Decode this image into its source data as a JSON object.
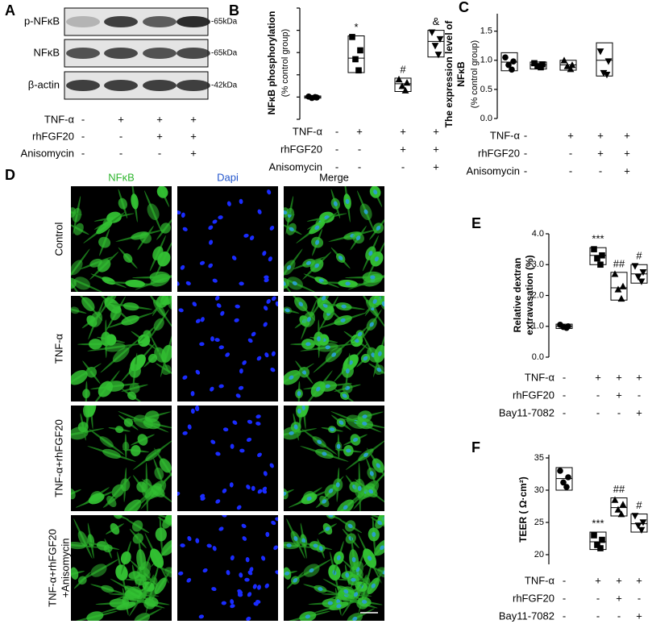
{
  "blot": {
    "label": "A",
    "rows": [
      {
        "name": "p-NFκB",
        "size": "-65kDa"
      },
      {
        "name": "NFκB",
        "size": "-65kDa"
      },
      {
        "name": "β-actin",
        "size": "-42kDa"
      }
    ],
    "conditions": [
      {
        "name": "TNF-α",
        "signs": [
          "-",
          "+",
          "+",
          "+"
        ]
      },
      {
        "name": "rhFGF20",
        "signs": [
          "-",
          "-",
          "+",
          "+"
        ]
      },
      {
        "name": "Anisomycin",
        "signs": [
          "-",
          "-",
          "-",
          "+"
        ]
      }
    ]
  },
  "chart_data": [
    {
      "type": "box",
      "label": "B",
      "ylabel": [
        "NFκB phosphorylation",
        "(% control group)"
      ],
      "ylim": [
        0,
        5
      ],
      "yticks": [
        0,
        1,
        2,
        3,
        4,
        5
      ],
      "tick_labels": false,
      "groups": [
        {
          "marker": "circle",
          "values": [
            1.02,
            0.98,
            0.96,
            1.0
          ],
          "box": [
            0.95,
            1.0,
            1.05
          ]
        },
        {
          "marker": "square",
          "values": [
            3.7,
            3.1,
            2.7,
            2.2
          ],
          "box": [
            2.1,
            2.75,
            3.75
          ],
          "annotation": "*"
        },
        {
          "marker": "triangle-up",
          "values": [
            1.8,
            1.65,
            1.5,
            1.3
          ],
          "box": [
            1.25,
            1.6,
            1.85
          ],
          "annotation": "#"
        },
        {
          "marker": "triangle-down",
          "values": [
            3.9,
            3.6,
            3.3,
            2.9
          ],
          "box": [
            2.8,
            3.5,
            4.0
          ],
          "annotation": "&"
        }
      ],
      "conditions": [
        {
          "name": "TNF-α",
          "signs": [
            "-",
            "+",
            "+",
            "+"
          ]
        },
        {
          "name": "rhFGF20",
          "signs": [
            "-",
            "-",
            "+",
            "+"
          ]
        },
        {
          "name": "Anisomycin",
          "signs": [
            "-",
            "-",
            "-",
            "+"
          ]
        }
      ]
    },
    {
      "type": "box",
      "label": "C",
      "ylabel": [
        "The expression level of",
        "NFκB",
        "(% control group)"
      ],
      "ylim": [
        0,
        1.8
      ],
      "yticks": [
        {
          "value": 0,
          "label": "0.0"
        },
        {
          "value": 0.5,
          "label": "0.5"
        },
        {
          "value": 1,
          "label": "1.0"
        },
        {
          "value": 1.5,
          "label": "1.5"
        }
      ],
      "groups": [
        {
          "marker": "circle",
          "values": [
            1.05,
            0.98,
            0.92,
            0.84
          ],
          "box": [
            0.82,
            0.97,
            1.13
          ]
        },
        {
          "marker": "square",
          "values": [
            0.95,
            0.93,
            0.9,
            0.88
          ],
          "box": [
            0.85,
            0.92,
            0.97
          ]
        },
        {
          "marker": "triangle-up",
          "values": [
            1.0,
            0.92,
            0.9,
            0.85
          ],
          "box": [
            0.83,
            0.92,
            1.0
          ]
        },
        {
          "marker": "triangle-down",
          "values": [
            1.15,
            0.98,
            0.78,
            0.75
          ],
          "box": [
            0.73,
            1.0,
            1.3
          ]
        }
      ],
      "conditions": [
        {
          "name": "TNF-α",
          "signs": [
            "-",
            "+",
            "+",
            "+"
          ]
        },
        {
          "name": "rhFGF20",
          "signs": [
            "-",
            "-",
            "+",
            "+"
          ]
        },
        {
          "name": "Anisomycin",
          "signs": [
            "-",
            "-",
            "-",
            "+"
          ]
        }
      ]
    },
    {
      "type": "box",
      "label": "E",
      "ylabel": [
        "Relative dextran",
        "extravasation (%)"
      ],
      "ylim": [
        0,
        4
      ],
      "yticks": [
        {
          "value": 0,
          "label": "0.0"
        },
        {
          "value": 1,
          "label": "1.0"
        },
        {
          "value": 2,
          "label": "2.0"
        },
        {
          "value": 3,
          "label": "3.0"
        },
        {
          "value": 4,
          "label": "4.0"
        }
      ],
      "groups": [
        {
          "marker": "circle",
          "values": [
            1.05,
            1.0,
            0.98,
            0.95
          ],
          "box": [
            0.93,
            1.0,
            1.07
          ]
        },
        {
          "marker": "square",
          "values": [
            3.5,
            3.3,
            3.2,
            3.0
          ],
          "box": [
            3.0,
            3.3,
            3.55
          ],
          "annotation": "***"
        },
        {
          "marker": "triangle-up",
          "values": [
            2.7,
            2.3,
            2.2,
            1.9
          ],
          "box": [
            1.85,
            2.25,
            2.75
          ],
          "annotation": "##"
        },
        {
          "marker": "triangle-down",
          "values": [
            2.95,
            2.75,
            2.6,
            2.45
          ],
          "box": [
            2.4,
            2.7,
            3.0
          ],
          "annotation": "#"
        }
      ],
      "conditions": [
        {
          "name": "TNF-α",
          "signs": [
            "-",
            "+",
            "+",
            "+"
          ]
        },
        {
          "name": "rhFGF20",
          "signs": [
            "-",
            "-",
            "+",
            "-"
          ]
        },
        {
          "name": "Bay11-7082",
          "signs": [
            "-",
            "-",
            "-",
            "+"
          ]
        }
      ]
    },
    {
      "type": "box",
      "label": "F",
      "ylabel": [
        "TEER ( Ω·cm²)"
      ],
      "ylim": [
        18.5,
        35.5
      ],
      "yticks": [
        20,
        25,
        30,
        35
      ],
      "groups": [
        {
          "marker": "circle",
          "values": [
            33.0,
            32.0,
            31.2,
            30.5
          ],
          "box": [
            30.0,
            31.8,
            33.5
          ]
        },
        {
          "marker": "square",
          "values": [
            23.0,
            22.3,
            21.5,
            21.0
          ],
          "box": [
            20.8,
            22.0,
            23.5
          ],
          "annotation": "***"
        },
        {
          "marker": "triangle-up",
          "values": [
            28.5,
            27.8,
            27.0,
            26.3
          ],
          "box": [
            26.0,
            27.3,
            28.8
          ],
          "annotation": "##"
        },
        {
          "marker": "triangle-down",
          "values": [
            26.0,
            25.0,
            24.5,
            23.8
          ],
          "box": [
            23.5,
            24.8,
            26.3
          ],
          "annotation": "#"
        }
      ],
      "conditions": [
        {
          "name": "TNF-α",
          "signs": [
            "-",
            "+",
            "+",
            "+"
          ]
        },
        {
          "name": "rhFGF20",
          "signs": [
            "-",
            "-",
            "+",
            "-"
          ]
        },
        {
          "name": "Bay11-7082",
          "signs": [
            "-",
            "-",
            "-",
            "+"
          ]
        }
      ]
    }
  ],
  "micrographs": {
    "label": "D",
    "columns": [
      "NFκB",
      "Dapi",
      "Merge"
    ],
    "rows": [
      [
        "Control"
      ],
      [
        "TNF-α"
      ],
      [
        "TNF-α+rhFGF20"
      ],
      [
        "TNF-α+rhFGF20",
        "+Anisomycin"
      ]
    ]
  }
}
